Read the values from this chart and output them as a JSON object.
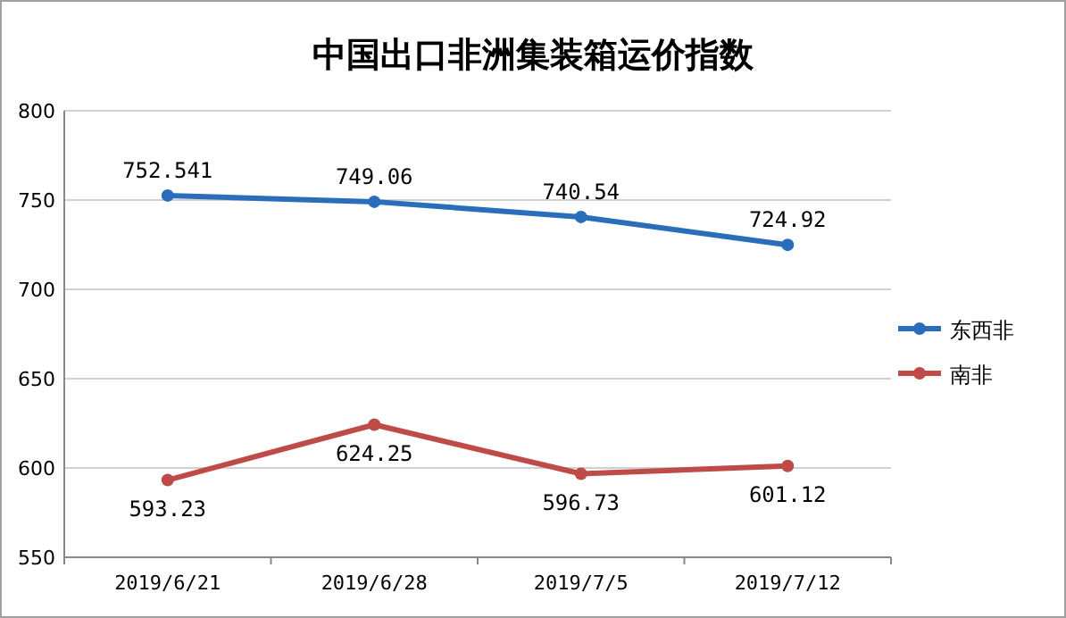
{
  "chart_data": {
    "type": "line",
    "title": "中国出口非洲集装箱运价指数",
    "categories": [
      "2019/6/21",
      "2019/6/28",
      "2019/7/5",
      "2019/7/12"
    ],
    "series": [
      {
        "name": "东西非",
        "color": "#2a6ebb",
        "values": [
          752.541,
          749.06,
          740.54,
          724.92
        ]
      },
      {
        "name": "南非",
        "color": "#be4b48",
        "values": [
          593.23,
          624.25,
          596.73,
          601.12
        ]
      }
    ],
    "ylim": [
      550,
      800
    ],
    "yticks": [
      550,
      600,
      650,
      700,
      750,
      800
    ],
    "grid": "y",
    "legend": "right",
    "marker": "circle",
    "line_style": "solid",
    "data_labels": true
  }
}
